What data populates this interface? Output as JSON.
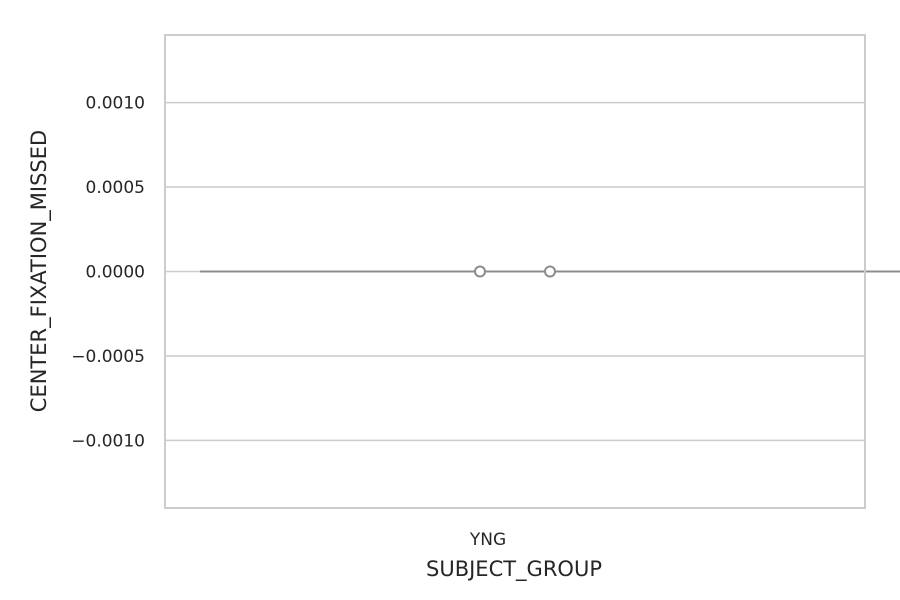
{
  "chart_data": {
    "type": "violin",
    "title": "",
    "xlabel": "SUBJECT_GROUP",
    "ylabel": "CENTER_FIXATION_MISSED",
    "categories": [
      "YNG"
    ],
    "ylim": [
      -0.0014,
      0.0014
    ],
    "yticks": [
      0.001,
      0.0005,
      0.0,
      -0.0005,
      -0.001
    ],
    "ytick_labels": [
      "0.0010",
      "0.0005",
      "0.0000",
      "−0.0005",
      "−0.0010"
    ],
    "grid": "horizontal",
    "violin_extent": [
      -0.45,
      0.55
    ],
    "box_quartiles": [
      -0.05,
      0.05
    ],
    "values": [
      0,
      0,
      0,
      0,
      0,
      0,
      0,
      0,
      0,
      0
    ],
    "colors": {
      "violin": "#8c8c8c",
      "marker_face": "#ffffff",
      "grid": "#cccccc",
      "frame": "#cccccc"
    }
  }
}
